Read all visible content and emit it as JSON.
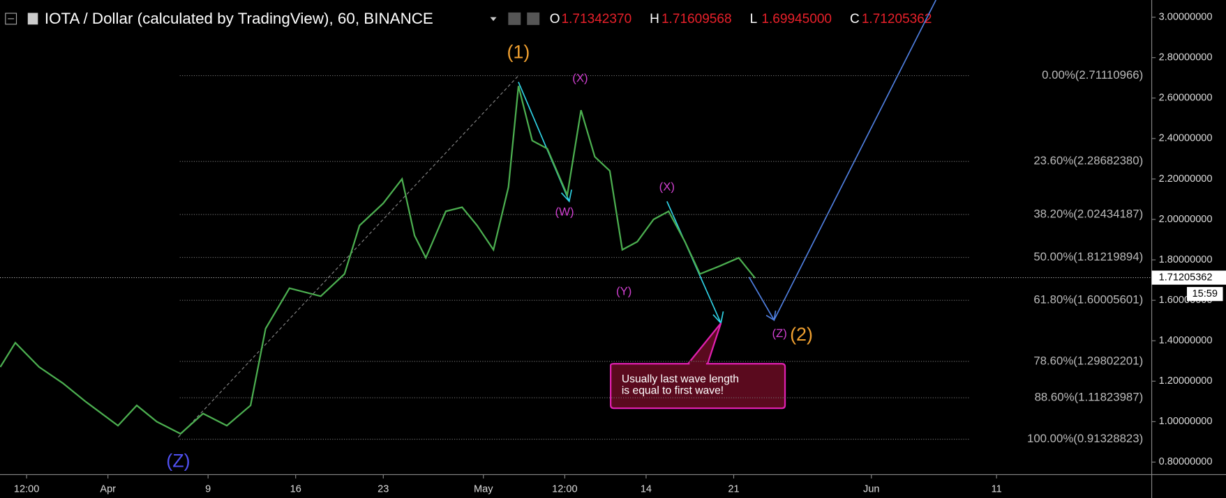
{
  "header": {
    "title": "IOTA / Dollar (calculated by TradingView), 60, BINANCE",
    "ohlc": [
      {
        "key": "O",
        "value": "1.71342370"
      },
      {
        "key": "H",
        "value": "1.71609568"
      },
      {
        "key": "L",
        "value": "1.69945000"
      },
      {
        "key": "C",
        "value": "1.71205362"
      }
    ]
  },
  "chart_data": {
    "type": "line",
    "color": "#4caf50",
    "x": [
      -8.6,
      -7.4,
      -5.5,
      -3.6,
      -1.8,
      0.8,
      2.3,
      3.9,
      5.8,
      7.6,
      9.5,
      11.4,
      12.6,
      14.5,
      17,
      18.9,
      20.1,
      22,
      23.5,
      24.5,
      25.4,
      27,
      28.3,
      29.5,
      30.8,
      32,
      32.8,
      33.9,
      35.1,
      36.7,
      37.8,
      38.9,
      40.1,
      41.1,
      42.3,
      43.6,
      44.8,
      46.1,
      47.3,
      48.9,
      50.4,
      51.7
    ],
    "values": [
      1.27,
      1.39,
      1.27,
      1.19,
      1.1,
      0.98,
      1.08,
      1.0,
      0.94,
      1.04,
      0.98,
      1.08,
      1.46,
      1.66,
      1.62,
      1.73,
      1.97,
      2.08,
      2.2,
      1.92,
      1.81,
      2.04,
      2.06,
      1.97,
      1.85,
      2.16,
      2.66,
      2.39,
      2.35,
      2.12,
      2.54,
      2.31,
      2.24,
      1.85,
      1.89,
      2.0,
      2.04,
      1.89,
      1.73,
      1.77,
      1.81,
      1.71
    ],
    "xlim": [
      -8.625,
      83.4
    ],
    "xticks": [
      {
        "value": -6.5,
        "label": "12:00"
      },
      {
        "value": 0,
        "label": "Apr"
      },
      {
        "value": 8,
        "label": "9"
      },
      {
        "value": 15,
        "label": "16"
      },
      {
        "value": 22,
        "label": "23"
      },
      {
        "value": 30,
        "label": "May"
      },
      {
        "value": 36.5,
        "label": "12:00"
      },
      {
        "value": 43,
        "label": "14"
      },
      {
        "value": 50,
        "label": "21"
      },
      {
        "value": 61,
        "label": "Jun"
      },
      {
        "value": 71,
        "label": "11"
      }
    ],
    "ylim": [
      0.742,
      3.085
    ],
    "yticks": [
      {
        "value": 0.8,
        "label": "0.80000000"
      },
      {
        "value": 1.0,
        "label": "1.00000000"
      },
      {
        "value": 1.2,
        "label": "1.20000000"
      },
      {
        "value": 1.4,
        "label": "1.40000000"
      },
      {
        "value": 1.6,
        "label": "1.60000000"
      },
      {
        "value": 1.8,
        "label": "1.80000000"
      },
      {
        "value": 2.0,
        "label": "2.00000000"
      },
      {
        "value": 2.2,
        "label": "2.20000000"
      },
      {
        "value": 2.4,
        "label": "2.40000000"
      },
      {
        "value": 2.6,
        "label": "2.60000000"
      },
      {
        "value": 2.8,
        "label": "2.80000000"
      },
      {
        "value": 3.0,
        "label": "3.00000000"
      }
    ],
    "fib_levels": [
      {
        "value": 2.71110966,
        "label": "0.00%(2.71110966)"
      },
      {
        "value": 2.2868238,
        "label": "23.60%(2.28682380)"
      },
      {
        "value": 2.02434187,
        "label": "38.20%(2.02434187)"
      },
      {
        "value": 1.81219894,
        "label": "50.00%(1.81219894)"
      },
      {
        "value": 1.60005601,
        "label": "61.80%(1.60005601)"
      },
      {
        "value": 1.29802201,
        "label": "78.60%(1.29802201)"
      },
      {
        "value": 1.11823987,
        "label": "88.60%(1.11823987)"
      },
      {
        "value": 0.91328823,
        "label": "100.00%(0.91328823)"
      }
    ],
    "last_price": {
      "value": 1.71205362,
      "label": "1.71205362"
    },
    "countdown": "15:59",
    "wave_labels": [
      "(1)",
      "(X)",
      "(W)",
      "(X)",
      "(Y)",
      "(Z)",
      "(2)",
      "(Z)"
    ],
    "callout": [
      "Usually last wave length",
      "is equal to first wave!"
    ]
  }
}
